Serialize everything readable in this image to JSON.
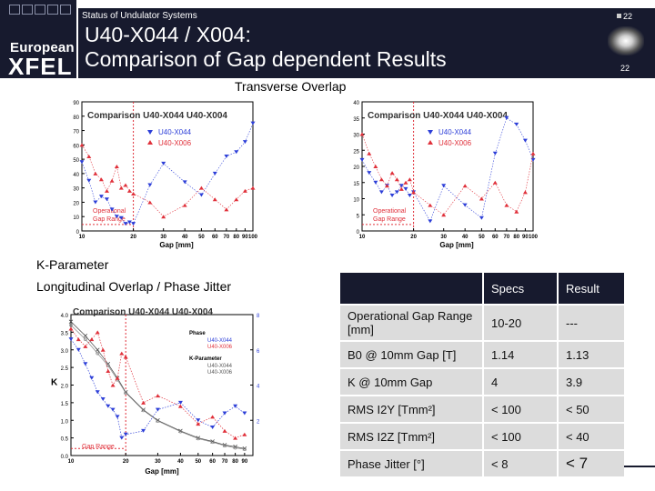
{
  "header": {
    "subtitle": "Status of Undulator Systems",
    "title_line1": "U40-X044 / X004:",
    "title_line2": "Comparison of Gap dependent Results",
    "page_number_top": "22",
    "page_number_bottom": "22",
    "logo_line1": "European",
    "logo_line2": "XFEL"
  },
  "sections": {
    "transverse": "Transverse Overlap",
    "kparam": "K-Parameter",
    "longitudinal": "Longitudinal Overlap / Phase Jitter"
  },
  "charts": {
    "transverse_y": {
      "title": "Comparison U40-X044 U40-X004",
      "legend": [
        "U40-X044",
        "U40-X006"
      ],
      "range_label_1": "Operational",
      "range_label_2": "Gap Range",
      "xlabel": "Gap [mm]",
      "x_ticks": [
        "10",
        "20",
        "30",
        "40",
        "50",
        "60",
        "70",
        "80",
        "90",
        "100"
      ],
      "y_ticks": [
        "0",
        "10",
        "20",
        "30",
        "40",
        "50",
        "60",
        "70",
        "80",
        "90"
      ]
    },
    "transverse_z": {
      "title": "Comparison U40-X044 U40-X004",
      "legend": [
        "U40-X044",
        "U40-X006"
      ],
      "range_label_1": "Operational",
      "range_label_2": "Gap Range",
      "xlabel": "Gap [mm]",
      "x_ticks": [
        "10",
        "20",
        "30",
        "40",
        "50",
        "60",
        "70",
        "80",
        "90",
        "100"
      ],
      "y_ticks": [
        "0",
        "5",
        "10",
        "15",
        "20",
        "25",
        "30",
        "35",
        "40"
      ]
    },
    "kparam": {
      "title": "Comparison U40-X044 U40-X004",
      "legend_phase": "Phase",
      "legend_k": "K-Parameter",
      "legend": [
        "U40-X044",
        "U40-X006",
        "U40-X044",
        "U40-X006"
      ],
      "range_label": "Gap Range",
      "xlabel": "Gap [mm]",
      "y_left_label": "K",
      "x_ticks": [
        "10",
        "20",
        "30",
        "40",
        "50",
        "60",
        "70",
        "80",
        "90"
      ],
      "y_left_ticks": [
        "0.0",
        "0.5",
        "1.0",
        "1.5",
        "2.0",
        "2.5",
        "3.0",
        "3.5",
        "4.0"
      ],
      "y_right_ticks": [
        "2",
        "4",
        "6",
        "8"
      ]
    }
  },
  "chart_data": [
    {
      "type": "scatter",
      "title": "Comparison U40-X044 U40-X004",
      "xlabel": "Gap [mm]",
      "ylim": [
        0,
        90
      ],
      "xlim": [
        10,
        100
      ],
      "x_scale": "log",
      "series": [
        {
          "name": "U40-X044",
          "x": [
            10,
            11,
            12,
            13,
            14,
            15,
            16,
            17,
            18,
            19,
            20,
            25,
            30,
            40,
            50,
            60,
            70,
            80,
            90,
            100
          ],
          "y": [
            48,
            35,
            20,
            24,
            22,
            15,
            10,
            9,
            5,
            6,
            5,
            32,
            47,
            34,
            25,
            40,
            52,
            55,
            62,
            75
          ]
        },
        {
          "name": "U40-X006",
          "x": [
            10,
            11,
            12,
            13,
            14,
            15,
            16,
            17,
            18,
            19,
            20,
            25,
            30,
            40,
            50,
            60,
            70,
            80,
            90,
            100
          ],
          "y": [
            60,
            52,
            40,
            36,
            28,
            35,
            45,
            30,
            32,
            28,
            26,
            20,
            10,
            18,
            30,
            22,
            15,
            22,
            28,
            30
          ]
        }
      ]
    },
    {
      "type": "scatter",
      "title": "Comparison U40-X044 U40-X004",
      "xlabel": "Gap [mm]",
      "ylim": [
        0,
        40
      ],
      "xlim": [
        10,
        100
      ],
      "x_scale": "log",
      "series": [
        {
          "name": "U40-X044",
          "x": [
            10,
            11,
            12,
            13,
            14,
            15,
            16,
            17,
            18,
            19,
            20,
            25,
            30,
            40,
            50,
            60,
            70,
            80,
            90,
            100
          ],
          "y": [
            22,
            18,
            15,
            12,
            14,
            11,
            12,
            14,
            13,
            11,
            12,
            3,
            14,
            8,
            4,
            24,
            35,
            33,
            28,
            22
          ]
        },
        {
          "name": "U40-X006",
          "x": [
            10,
            11,
            12,
            13,
            14,
            15,
            16,
            17,
            18,
            19,
            20,
            25,
            30,
            40,
            50,
            60,
            70,
            80,
            90,
            100
          ],
          "y": [
            30,
            24,
            20,
            16,
            14,
            18,
            16,
            13,
            15,
            16,
            12,
            8,
            5,
            14,
            10,
            15,
            8,
            6,
            12,
            24
          ]
        }
      ]
    },
    {
      "type": "line",
      "title": "Comparison U40-X044 U40-X004",
      "xlabel": "Gap [mm]",
      "ylabel": "K",
      "ylim": [
        0,
        4
      ],
      "xlim": [
        10,
        90
      ],
      "series": [
        {
          "name": "U40-X044",
          "x": [
            10,
            12,
            14,
            16,
            18,
            20,
            25,
            30,
            40,
            50,
            60,
            70,
            80,
            90
          ],
          "y": [
            3.8,
            3.4,
            3.0,
            2.6,
            2.2,
            1.8,
            1.3,
            1.0,
            0.7,
            0.5,
            0.4,
            0.3,
            0.25,
            0.2
          ]
        },
        {
          "name": "U40-X006",
          "x": [
            10,
            12,
            14,
            16,
            18,
            20,
            25,
            30,
            40,
            50,
            60,
            70,
            80,
            90
          ],
          "y": [
            3.7,
            3.3,
            2.9,
            2.55,
            2.15,
            1.78,
            1.28,
            0.98,
            0.68,
            0.48,
            0.38,
            0.28,
            0.22,
            0.18
          ]
        },
        {
          "name": "U40-X044",
          "x": [
            10,
            11,
            12,
            13,
            14,
            15,
            16,
            17,
            18,
            19,
            20,
            25,
            30,
            40,
            50,
            60,
            70,
            80,
            90
          ],
          "y": [
            3.3,
            3.0,
            2.6,
            2.2,
            1.8,
            1.6,
            1.4,
            1.3,
            1.1,
            0.5,
            0.6,
            0.7,
            1.3,
            1.5,
            1.0,
            0.8,
            1.2,
            1.4,
            1.2
          ]
        },
        {
          "name": "U40-X006",
          "x": [
            10,
            11,
            12,
            13,
            14,
            15,
            16,
            17,
            18,
            19,
            20,
            25,
            30,
            40,
            50,
            60,
            70,
            80,
            90
          ],
          "y": [
            3.6,
            3.3,
            3.1,
            3.3,
            3.5,
            3.0,
            2.4,
            2.0,
            2.2,
            2.9,
            2.8,
            1.5,
            1.7,
            1.4,
            0.9,
            1.1,
            0.7,
            0.5,
            0.6
          ]
        }
      ]
    }
  ],
  "table": {
    "headers": [
      "",
      "Specs",
      "Result"
    ],
    "rows": [
      [
        "Operational Gap Range [mm]",
        "10-20",
        "---"
      ],
      [
        "B0 @ 10mm Gap [T]",
        "1.14",
        "1.13"
      ],
      [
        "K @ 10mm Gap",
        "4",
        "3.9"
      ],
      [
        "RMS I2Y [Tmm²]",
        "< 100",
        "< 50"
      ],
      [
        "RMS I2Z [Tmm²]",
        "< 100",
        "< 40"
      ],
      [
        "Phase Jitter [°]",
        "< 8",
        "< 7"
      ]
    ]
  },
  "colors": {
    "dark_navy": "#171a2e",
    "series_blue": "#2d3fd8",
    "series_red": "#e0303a",
    "table_cell": "#dcdcdc"
  }
}
